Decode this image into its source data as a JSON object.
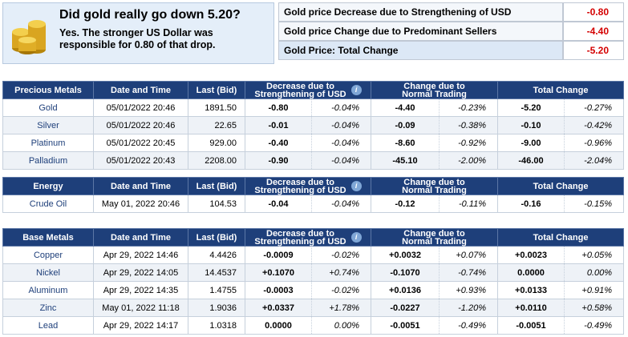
{
  "hero": {
    "title": "Did gold really go down 5.20?",
    "subtitle": "Yes. The stronger US Dollar was responsible for 0.80 of that drop."
  },
  "summary": [
    {
      "label": "Gold price Decrease due to Strengthening of USD",
      "value": "-0.80"
    },
    {
      "label": "Gold price Change due to Predominant Sellers",
      "value": "-4.40"
    },
    {
      "label": "Gold Price: Total Change",
      "value": "-5.20"
    }
  ],
  "headers": {
    "date": "Date and Time",
    "bid": "Last (Bid)",
    "usd": "Decrease due to Strengthening of USD",
    "usd_line1": "Decrease due to",
    "usd_line2": "Strengthening of USD",
    "normal_line1": "Change due to",
    "normal_line2": "Normal Trading",
    "total": "Total Change",
    "info_icon": "i"
  },
  "precious": {
    "title": "Precious Metals",
    "rows": [
      {
        "name": "Gold",
        "date": "05/01/2022 20:46",
        "bid": "1891.50",
        "usd": "-0.80",
        "usd_pct": "-0.04%",
        "normal": "-4.40",
        "normal_pct": "-0.23%",
        "total": "-5.20",
        "total_pct": "-0.27%"
      },
      {
        "name": "Silver",
        "date": "05/01/2022 20:46",
        "bid": "22.65",
        "usd": "-0.01",
        "usd_pct": "-0.04%",
        "normal": "-0.09",
        "normal_pct": "-0.38%",
        "total": "-0.10",
        "total_pct": "-0.42%"
      },
      {
        "name": "Platinum",
        "date": "05/01/2022 20:45",
        "bid": "929.00",
        "usd": "-0.40",
        "usd_pct": "-0.04%",
        "normal": "-8.60",
        "normal_pct": "-0.92%",
        "total": "-9.00",
        "total_pct": "-0.96%"
      },
      {
        "name": "Palladium",
        "date": "05/01/2022 20:43",
        "bid": "2208.00",
        "usd": "-0.90",
        "usd_pct": "-0.04%",
        "normal": "-45.10",
        "normal_pct": "-2.00%",
        "total": "-46.00",
        "total_pct": "-2.04%"
      }
    ]
  },
  "energy": {
    "title": "Energy",
    "rows": [
      {
        "name": "Crude Oil",
        "date": "May 01, 2022 20:46",
        "bid": "104.53",
        "usd": "-0.04",
        "usd_pct": "-0.04%",
        "normal": "-0.12",
        "normal_pct": "-0.11%",
        "total": "-0.16",
        "total_pct": "-0.15%"
      }
    ]
  },
  "base": {
    "title": "Base Metals",
    "rows": [
      {
        "name": "Copper",
        "date": "Apr 29, 2022 14:46",
        "bid": "4.4426",
        "usd": "-0.0009",
        "usd_pct": "-0.02%",
        "normal": "+0.0032",
        "normal_pct": "+0.07%",
        "total": "+0.0023",
        "total_pct": "+0.05%"
      },
      {
        "name": "Nickel",
        "date": "Apr 29, 2022 14:05",
        "bid": "14.4537",
        "usd": "+0.1070",
        "usd_pct": "+0.74%",
        "normal": "-0.1070",
        "normal_pct": "-0.74%",
        "total": "0.0000",
        "total_pct": "0.00%"
      },
      {
        "name": "Aluminum",
        "date": "Apr 29, 2022 14:35",
        "bid": "1.4755",
        "usd": "-0.0003",
        "usd_pct": "-0.02%",
        "normal": "+0.0136",
        "normal_pct": "+0.93%",
        "total": "+0.0133",
        "total_pct": "+0.91%"
      },
      {
        "name": "Zinc",
        "date": "May 01, 2022 11:18",
        "bid": "1.9036",
        "usd": "+0.0337",
        "usd_pct": "+1.78%",
        "normal": "-0.0227",
        "normal_pct": "-1.20%",
        "total": "+0.0110",
        "total_pct": "+0.58%"
      },
      {
        "name": "Lead",
        "date": "Apr 29, 2022 14:17",
        "bid": "1.0318",
        "usd": "0.0000",
        "usd_pct": "0.00%",
        "normal": "-0.0051",
        "normal_pct": "-0.49%",
        "total": "-0.0051",
        "total_pct": "-0.49%"
      }
    ]
  },
  "colors": {
    "header_bg": "#1e3f7a",
    "negative": "#d40000",
    "positive": "#008a00"
  }
}
